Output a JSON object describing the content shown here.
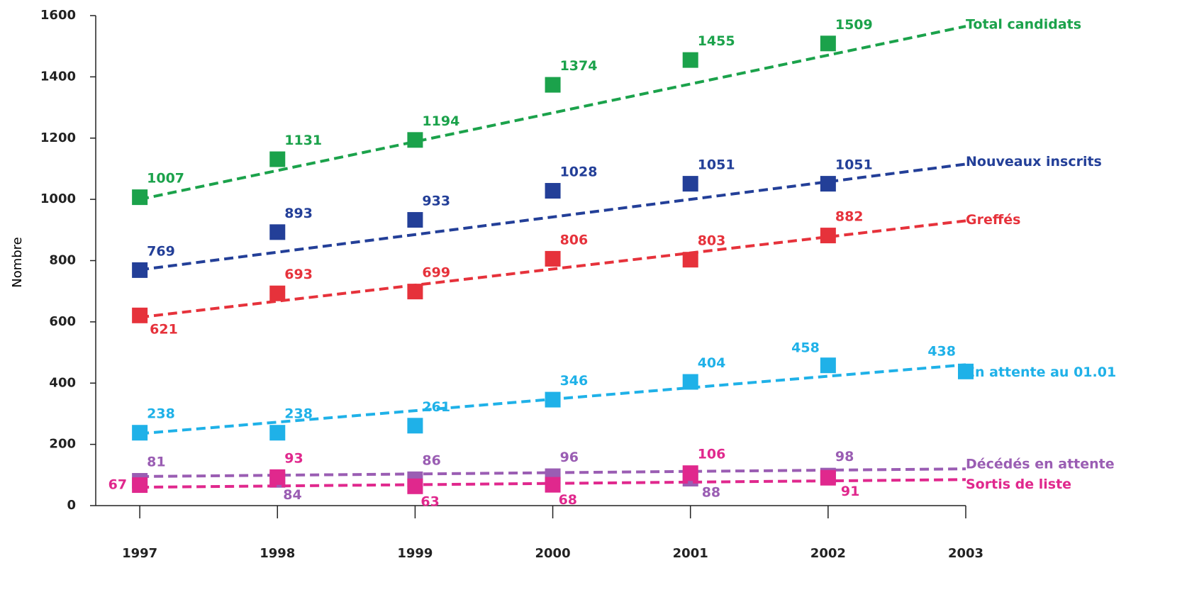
{
  "chart_data": {
    "type": "scatter",
    "y_label": "Nombre",
    "x": [
      1997,
      1998,
      1999,
      2000,
      2001,
      2002,
      2003
    ],
    "xlim": [
      1996.68,
      2003
    ],
    "xticks": [
      1997,
      1998,
      1999,
      2000,
      2001,
      2002,
      2003
    ],
    "ylim": [
      0,
      1600
    ],
    "yticks": [
      0,
      200,
      400,
      600,
      800,
      1000,
      1200,
      1400,
      1600
    ],
    "grid": false,
    "trend_x": [
      1997,
      2003
    ],
    "series": [
      {
        "name": "Total candidats",
        "color": "#1ba24b",
        "values": [
          1007,
          1131,
          1194,
          1374,
          1455,
          1509,
          null
        ],
        "trend": [
          1000,
          1565
        ]
      },
      {
        "name": "Nouveaux inscrits",
        "color": "#233f98",
        "values": [
          769,
          893,
          933,
          1028,
          1051,
          1051,
          null
        ],
        "trend": [
          770,
          1115
        ]
      },
      {
        "name": "Greffés",
        "color": "#e6323b",
        "values": [
          621,
          693,
          699,
          806,
          803,
          882,
          null
        ],
        "trend": [
          615,
          930
        ]
      },
      {
        "name": "En attente au 01.01",
        "color": "#1fb1e8",
        "values": [
          238,
          238,
          261,
          346,
          404,
          458,
          438
        ],
        "trend": [
          235,
          460
        ]
      },
      {
        "name": "Décédés en attente",
        "color": "#9a5db3",
        "values": [
          81,
          84,
          86,
          96,
          88,
          98,
          null
        ],
        "trend": [
          95,
          120
        ]
      },
      {
        "name": "Sortis de liste",
        "color": "#e0288d",
        "values": [
          67,
          93,
          63,
          68,
          106,
          91,
          null
        ],
        "trend": [
          60,
          85
        ]
      }
    ]
  }
}
